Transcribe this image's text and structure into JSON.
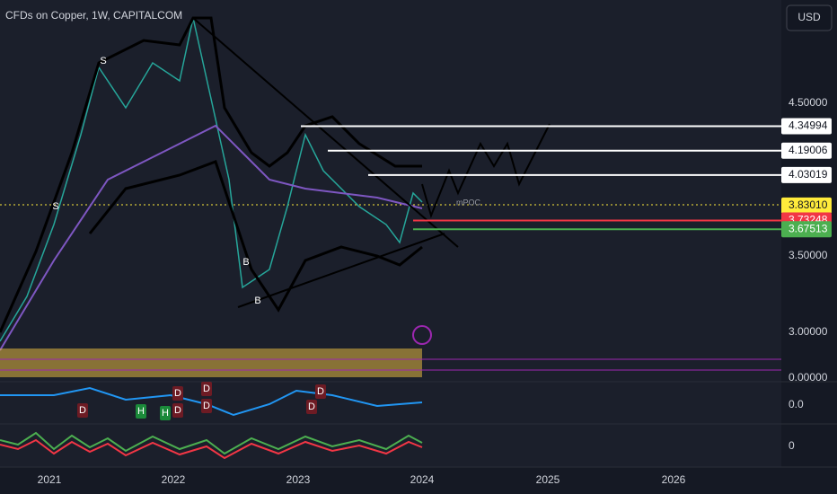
{
  "header": {
    "title": "CFDs on Copper, 1W, CAPITALCOM",
    "currency": "USD"
  },
  "price_axis": [
    {
      "value": 4.5,
      "label": "4.50000"
    },
    {
      "value": 3.5,
      "label": "3.50000"
    },
    {
      "value": 3.0,
      "label": "3.00000"
    }
  ],
  "levels": [
    {
      "value": 4.34994,
      "label": "4.34994",
      "color": "#ffffff"
    },
    {
      "value": 4.19006,
      "label": "4.19006",
      "color": "#ffffff"
    },
    {
      "value": 4.03019,
      "label": "4.03019",
      "color": "#ffffff"
    },
    {
      "value": 3.8301,
      "label": "3.83010",
      "color": "#ffeb3b"
    },
    {
      "value": 3.73248,
      "label": "3.73248",
      "color": "#f23645"
    },
    {
      "value": 3.67513,
      "label": "3.67513",
      "color": "#4caf50"
    }
  ],
  "indicator_axis": [
    "0.00000",
    "0.0",
    "0"
  ],
  "time_axis": [
    "2021",
    "2022",
    "2023",
    "2024",
    "2025",
    "2026"
  ],
  "markers": [
    "S",
    "S",
    "B",
    "B",
    "H",
    "H",
    "D",
    "D",
    "D",
    "D",
    "D",
    "D",
    "D"
  ],
  "annotations": [
    "mPOC"
  ]
}
